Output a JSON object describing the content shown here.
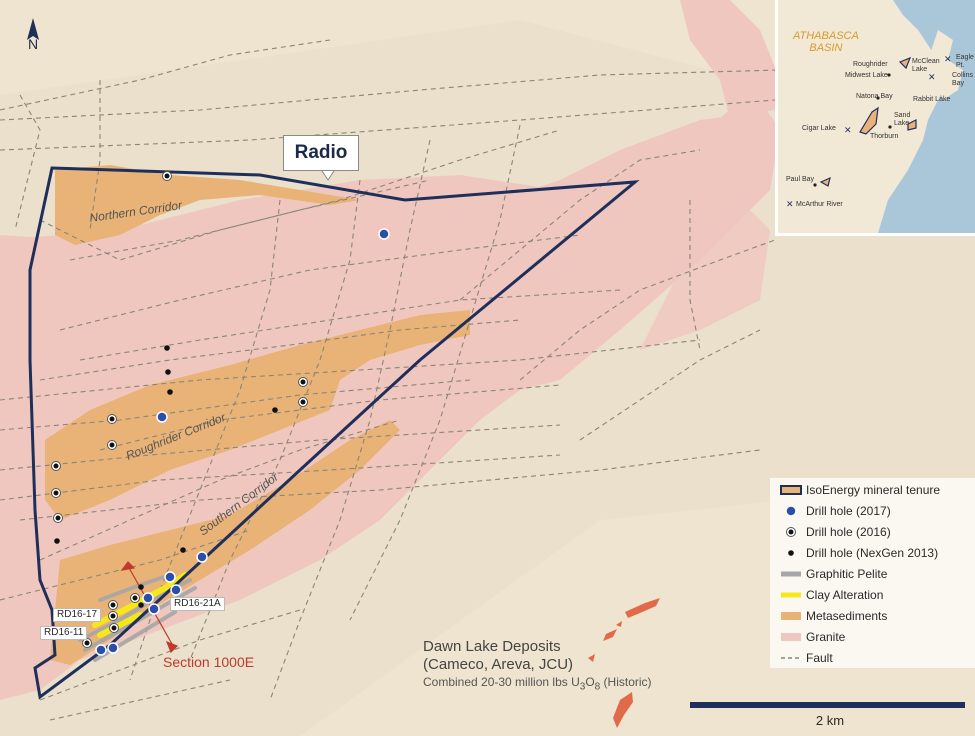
{
  "north_label": "N",
  "project_label": "Radio",
  "corridors": {
    "northern": "Northern Corridor",
    "roughrider": "Roughrider Corridor",
    "southern": "Southern Corridor"
  },
  "drill_labels": {
    "rd16_17": "RD16-17",
    "rd16_11": "RD16-11",
    "rd16_21a": "RD16-21A"
  },
  "section_label": "Section 1000E",
  "dawn_lake": {
    "title": "Dawn Lake Deposits",
    "owners": "(Cameco, Areva, JCU)",
    "resource": "Combined 20-30 million lbs U3O8 (Historic)"
  },
  "scale_label": "2 km",
  "legend": [
    {
      "symbol": "tenure-box",
      "label": "IsoEnergy mineral tenure"
    },
    {
      "symbol": "blue-dot",
      "label": "Drill hole (2017)"
    },
    {
      "symbol": "ring-dot",
      "label": "Drill hole (2016)"
    },
    {
      "symbol": "black-dot",
      "label": "Drill hole (NexGen 2013)"
    },
    {
      "symbol": "grey-line",
      "label": "Graphitic Pelite"
    },
    {
      "symbol": "yellow-line",
      "label": "Clay Alteration"
    },
    {
      "symbol": "orange-box",
      "label": "Metasediments"
    },
    {
      "symbol": "pink-box",
      "label": "Granite"
    },
    {
      "symbol": "dashed-line",
      "label": "Fault"
    }
  ],
  "inset": {
    "basin_label_1": "ATHABASCA",
    "basin_label_2": "BASIN",
    "places": {
      "roughrider": "Roughrider",
      "mccIean": "McClean",
      "lake_suffix": "Lake",
      "eagle": "Eagle",
      "pt": "Pt.",
      "midwest": "Midwest Lake",
      "collins": "Collins",
      "bay": "Bay",
      "natona": "Natona Bay",
      "rabbit": "Rabbit Lake",
      "sand": "Sand",
      "sand_lake": "Lake",
      "cigar": "Cigar Lake",
      "thorburn": "Thorburn",
      "paul": "Paul Bay",
      "mcarthur": "McArthur River"
    }
  },
  "colors": {
    "background": "#efe4cf",
    "granite": "#f0c7bf",
    "metasediments": "#e9b377",
    "tenure_outline": "#1f2f5c",
    "fault": "#8a8577",
    "drill_2017": "#2a4fa8",
    "clay": "#f4e81b",
    "pelite": "#a6a6a6",
    "section": "#c0392b",
    "dawn_deposits": "#e06a4a",
    "water": "#aac7da"
  }
}
